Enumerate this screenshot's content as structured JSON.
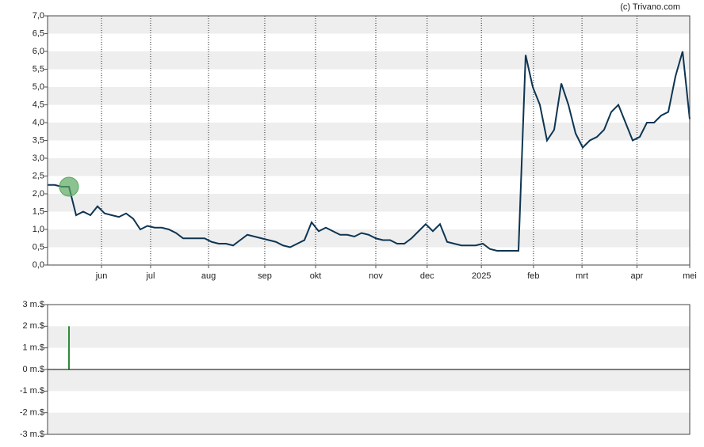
{
  "credit": "(c) Trivano.com",
  "chart_data": [
    {
      "type": "line",
      "series": [
        {
          "color": "#0d3552",
          "values": [
            2.25,
            2.25,
            2.2,
            2.2,
            1.4,
            1.5,
            1.4,
            1.65,
            1.45,
            1.4,
            1.35,
            1.45,
            1.3,
            1.0,
            1.1,
            1.05,
            1.05,
            1.0,
            0.9,
            0.75,
            0.75,
            0.75,
            0.75,
            0.65,
            0.6,
            0.6,
            0.55,
            0.7,
            0.85,
            0.8,
            0.75,
            0.7,
            0.65,
            0.55,
            0.5,
            0.6,
            0.7,
            1.2,
            0.95,
            1.05,
            0.95,
            0.85,
            0.85,
            0.8,
            0.9,
            0.85,
            0.75,
            0.7,
            0.7,
            0.6,
            0.6,
            0.75,
            0.95,
            1.15,
            0.95,
            1.15,
            0.65,
            0.6,
            0.55,
            0.55,
            0.55,
            0.6,
            0.45,
            0.4,
            0.4,
            0.4,
            0.4,
            5.9,
            5.0,
            4.5,
            3.5,
            3.8,
            5.1,
            4.5,
            3.7,
            3.3,
            3.5,
            3.6,
            3.8,
            4.3,
            4.5,
            4.0,
            3.5,
            3.6,
            4.0,
            4.0,
            4.2,
            4.3,
            5.3,
            6.0,
            4.1
          ]
        }
      ],
      "highlight_index": 3,
      "highlight_color": "#5aa85f",
      "xlim": [
        0,
        90
      ],
      "xticks": [
        {
          "value": 7.56,
          "label": "jun"
        },
        {
          "value": 14.44,
          "label": "jul"
        },
        {
          "value": 22.56,
          "label": "aug"
        },
        {
          "value": 30.44,
          "label": "sep"
        },
        {
          "value": 37.56,
          "label": "okt"
        },
        {
          "value": 46,
          "label": "nov"
        },
        {
          "value": 53.2,
          "label": "dec"
        },
        {
          "value": 60.8,
          "label": "2025"
        },
        {
          "value": 68.1,
          "label": "feb"
        },
        {
          "value": 74.9,
          "label": "mrt"
        },
        {
          "value": 82.6,
          "label": "apr"
        },
        {
          "value": 90,
          "label": "mei"
        }
      ],
      "ylim": [
        0,
        7
      ],
      "yticks": [
        {
          "value": 0,
          "label": "0,0"
        },
        {
          "value": 0.5,
          "label": "0,5"
        },
        {
          "value": 1,
          "label": "1,0"
        },
        {
          "value": 1.5,
          "label": "1,5"
        },
        {
          "value": 2,
          "label": "2,0"
        },
        {
          "value": 2.5,
          "label": "2,5"
        },
        {
          "value": 3,
          "label": "3,0"
        },
        {
          "value": 3.5,
          "label": "3,5"
        },
        {
          "value": 4,
          "label": "4,0"
        },
        {
          "value": 4.5,
          "label": "4,5"
        },
        {
          "value": 5,
          "label": "5,0"
        },
        {
          "value": 5.5,
          "label": "5,5"
        },
        {
          "value": 6,
          "label": "6,0"
        },
        {
          "value": 6.5,
          "label": "6,5"
        },
        {
          "value": 7,
          "label": "7,0"
        }
      ]
    },
    {
      "type": "bar",
      "x": [
        3
      ],
      "values": [
        2
      ],
      "color": "#2e8b3a",
      "xlim": [
        0,
        90
      ],
      "ylim": [
        -3,
        3
      ],
      "yticks": [
        {
          "value": 3,
          "label": "3 m.$"
        },
        {
          "value": 2,
          "label": "2 m.$"
        },
        {
          "value": 1,
          "label": "1 m.$"
        },
        {
          "value": 0,
          "label": "0 m.$"
        },
        {
          "value": -1,
          "label": "-1 m.$"
        },
        {
          "value": -2,
          "label": "-2 m.$"
        },
        {
          "value": -3,
          "label": "-3 m.$"
        }
      ]
    }
  ]
}
